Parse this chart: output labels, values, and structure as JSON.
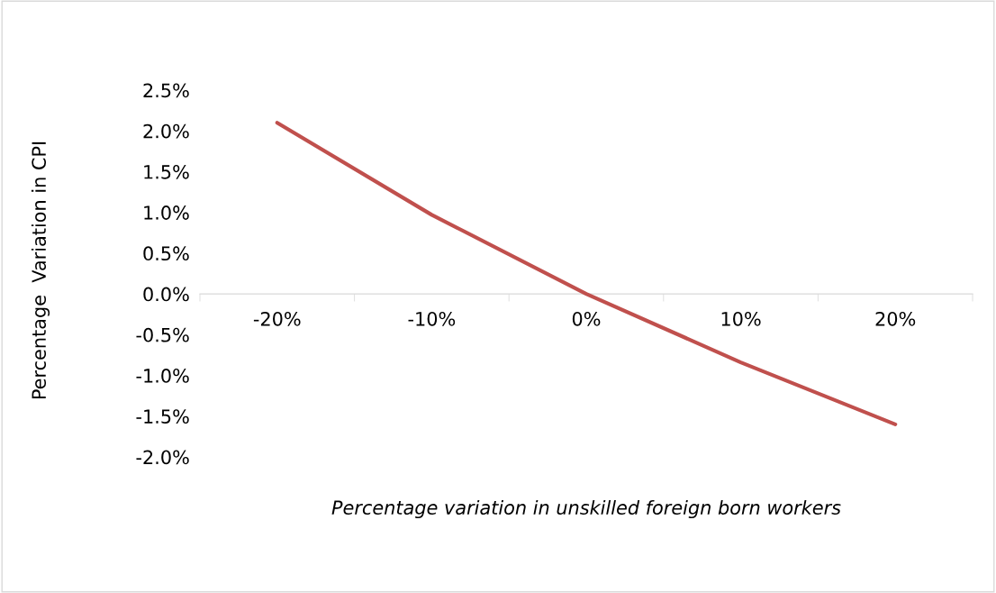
{
  "chart_data": {
    "type": "line",
    "xlabel": "Percentage variation in unskilled foreign born workers",
    "ylabel": "Percentage  Variation in CPI",
    "categories": [
      "-20%",
      "-10%",
      "0%",
      "10%",
      "20%"
    ],
    "series": [
      {
        "color": "#c0504d",
        "values": [
          2.1,
          0.97,
          0.0,
          -0.84,
          -1.6
        ]
      }
    ],
    "ylim": [
      -2.0,
      2.5
    ],
    "yticks": [
      {
        "value": -2.0,
        "label": "-2.0%"
      },
      {
        "value": -1.5,
        "label": "-1.5%"
      },
      {
        "value": -1.0,
        "label": "-1.0%"
      },
      {
        "value": -0.5,
        "label": "-0.5%"
      },
      {
        "value": 0.0,
        "label": "0.0%"
      },
      {
        "value": 0.5,
        "label": "0.5%"
      },
      {
        "value": 1.0,
        "label": "1.0%"
      },
      {
        "value": 1.5,
        "label": "1.5%"
      },
      {
        "value": 2.0,
        "label": "2.0%"
      },
      {
        "value": 2.5,
        "label": "2.5%"
      }
    ],
    "grid": false,
    "marker": "none",
    "line_style": "solid"
  }
}
